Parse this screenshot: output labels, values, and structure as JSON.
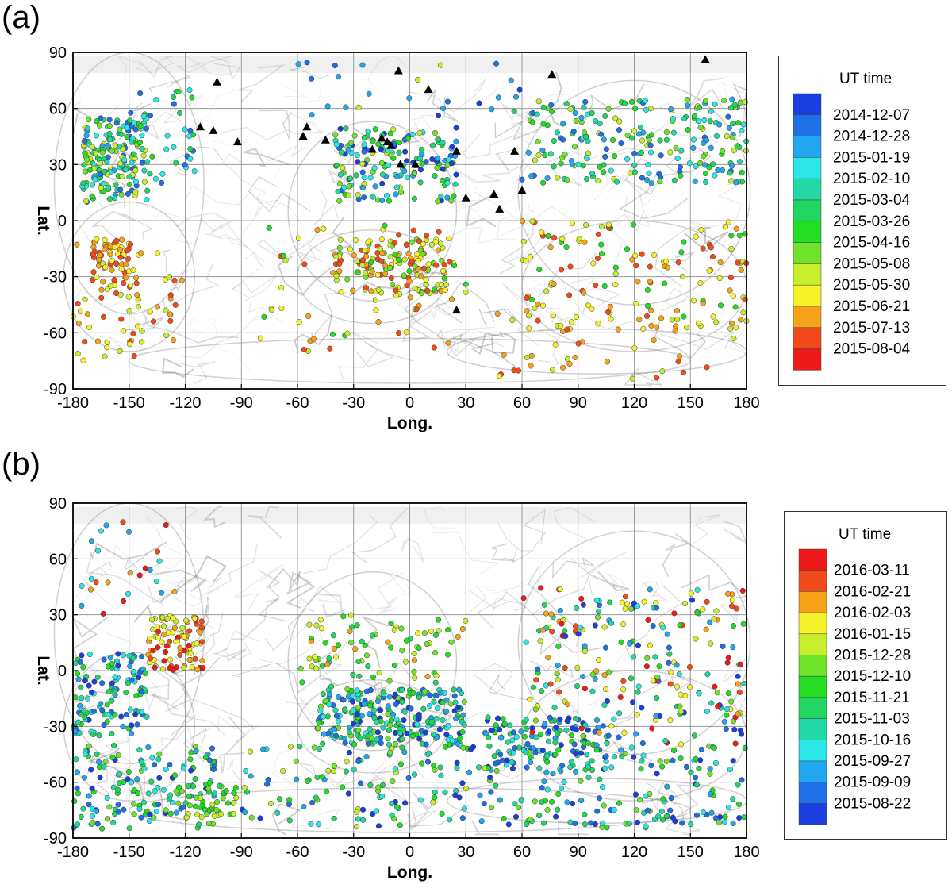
{
  "chart_data": [
    {
      "panel_label": "(a)",
      "type": "scatter",
      "xlabel": "Long.",
      "ylabel": "Lat.",
      "xlim": [
        -180,
        180
      ],
      "ylim": [
        -90,
        90
      ],
      "xticks": [
        "-180",
        "-150",
        "-120",
        "-90",
        "-60",
        "-30",
        "0",
        "30",
        "60",
        "90",
        "120",
        "150",
        "180"
      ],
      "yticks": [
        "90",
        "60",
        "30",
        "0",
        "-30",
        "-60",
        "-90"
      ],
      "grid": true,
      "legend": {
        "title": "UT time",
        "placement": "right",
        "entries": [
          {
            "label": "2014-12-07",
            "color": "#1a3ee0"
          },
          {
            "label": "2014-12-28",
            "color": "#1f6fe6"
          },
          {
            "label": "2015-01-19",
            "color": "#22a7ee"
          },
          {
            "label": "2015-02-10",
            "color": "#2ae6e6"
          },
          {
            "label": "2015-03-04",
            "color": "#22d9a6"
          },
          {
            "label": "2015-03-26",
            "color": "#22d460"
          },
          {
            "label": "2015-04-16",
            "color": "#22dd22"
          },
          {
            "label": "2015-05-08",
            "color": "#6fe22a"
          },
          {
            "label": "2015-05-30",
            "color": "#c6ee2a"
          },
          {
            "label": "2015-06-21",
            "color": "#f6f22a"
          },
          {
            "label": "2015-07-13",
            "color": "#f6a31a"
          },
          {
            "label": "2015-08-04",
            "color": "#f24a1a"
          },
          {
            "label": "",
            "color": "#ee1a1a"
          }
        ]
      },
      "marker_series": {
        "name": "",
        "marker": "triangle",
        "color": "#000000",
        "points": [
          [
            -103,
            74
          ],
          [
            -112,
            50
          ],
          [
            -105,
            48
          ],
          [
            -92,
            42
          ],
          [
            -55,
            50
          ],
          [
            -57,
            45
          ],
          [
            -45,
            43
          ],
          [
            -20,
            38
          ],
          [
            -15,
            44
          ],
          [
            -12,
            42
          ],
          [
            -10,
            40
          ],
          [
            -6,
            80
          ],
          [
            10,
            70
          ],
          [
            -5,
            30
          ],
          [
            3,
            30
          ],
          [
            25,
            37
          ],
          [
            30,
            12
          ],
          [
            45,
            14
          ],
          [
            48,
            6
          ],
          [
            56,
            37
          ],
          [
            60,
            16
          ],
          [
            76,
            78
          ],
          [
            158,
            86
          ],
          [
            25,
            -48
          ]
        ]
      },
      "color_clusters": [
        {
          "lon": [
            -175,
            -140
          ],
          "lat": [
            10,
            55
          ],
          "n": 180,
          "colors": [
            2,
            3,
            4,
            5,
            6,
            7,
            8,
            9
          ]
        },
        {
          "lon": [
            -170,
            -150
          ],
          "lat": [
            -35,
            -10
          ],
          "n": 60,
          "colors": [
            10,
            11,
            12
          ]
        },
        {
          "lon": [
            -180,
            -120
          ],
          "lat": [
            -75,
            -10
          ],
          "n": 70,
          "colors": [
            9,
            10,
            11,
            12
          ]
        },
        {
          "lon": [
            -150,
            -115
          ],
          "lat": [
            20,
            70
          ],
          "n": 40,
          "colors": [
            2,
            4,
            6,
            7
          ]
        },
        {
          "lon": [
            -40,
            25
          ],
          "lat": [
            10,
            50
          ],
          "n": 170,
          "colors": [
            1,
            2,
            3,
            4,
            5,
            6,
            7,
            8,
            9
          ]
        },
        {
          "lon": [
            -40,
            20
          ],
          "lat": [
            -40,
            -10
          ],
          "n": 140,
          "colors": [
            8,
            9,
            10,
            11,
            12
          ]
        },
        {
          "lon": [
            -80,
            30
          ],
          "lat": [
            -70,
            0
          ],
          "n": 70,
          "colors": [
            9,
            10,
            11,
            12,
            7
          ]
        },
        {
          "lon": [
            60,
            180
          ],
          "lat": [
            20,
            65
          ],
          "n": 220,
          "colors": [
            2,
            3,
            4,
            5,
            6,
            7,
            8,
            9
          ]
        },
        {
          "lon": [
            60,
            180
          ],
          "lat": [
            -60,
            0
          ],
          "n": 140,
          "colors": [
            9,
            10,
            11,
            12,
            7
          ]
        },
        {
          "lon": [
            40,
            180
          ],
          "lat": [
            -85,
            -45
          ],
          "n": 40,
          "colors": [
            10,
            11,
            12,
            9
          ]
        },
        {
          "lon": [
            -60,
            60
          ],
          "lat": [
            55,
            85
          ],
          "n": 25,
          "colors": [
            1,
            2,
            3,
            6,
            9
          ]
        }
      ]
    },
    {
      "panel_label": "(b)",
      "type": "scatter",
      "xlabel": "Long.",
      "ylabel": "Lat.",
      "xlim": [
        -180,
        180
      ],
      "ylim": [
        -90,
        90
      ],
      "xticks": [
        "-180",
        "-150",
        "-120",
        "-90",
        "-60",
        "-30",
        "0",
        "30",
        "60",
        "90",
        "120",
        "150",
        "180"
      ],
      "yticks": [
        "90",
        "60",
        "30",
        "0",
        "-30",
        "-60",
        "-90"
      ],
      "grid": true,
      "legend": {
        "title": "UT time",
        "placement": "right",
        "entries": [
          {
            "label": "2016-03-11",
            "color": "#ee1a1a"
          },
          {
            "label": "2016-02-21",
            "color": "#f24a1a"
          },
          {
            "label": "2016-02-03",
            "color": "#f6a31a"
          },
          {
            "label": "2016-01-15",
            "color": "#f6f22a"
          },
          {
            "label": "2015-12-28",
            "color": "#c6ee2a"
          },
          {
            "label": "2015-12-10",
            "color": "#6fe22a"
          },
          {
            "label": "2015-11-21",
            "color": "#22dd22"
          },
          {
            "label": "2015-11-03",
            "color": "#22d460"
          },
          {
            "label": "2015-10-16",
            "color": "#22d9a6"
          },
          {
            "label": "2015-09-27",
            "color": "#2ae6e6"
          },
          {
            "label": "2015-09-09",
            "color": "#22a7ee"
          },
          {
            "label": "2015-08-22",
            "color": "#1f6fe6"
          },
          {
            "label": "",
            "color": "#1a3ee0"
          }
        ]
      },
      "color_clusters": [
        {
          "lon": [
            -140,
            -110
          ],
          "lat": [
            0,
            30
          ],
          "n": 90,
          "colors": [
            1,
            2,
            3,
            4,
            5
          ]
        },
        {
          "lon": [
            -180,
            -140
          ],
          "lat": [
            -35,
            10
          ],
          "n": 120,
          "colors": [
            7,
            8,
            9,
            10,
            11,
            12,
            13
          ]
        },
        {
          "lon": [
            -180,
            -100
          ],
          "lat": [
            -85,
            -40
          ],
          "n": 150,
          "colors": [
            6,
            7,
            8,
            9,
            10,
            11,
            12,
            13
          ]
        },
        {
          "lon": [
            -50,
            30
          ],
          "lat": [
            -40,
            -10
          ],
          "n": 260,
          "colors": [
            6,
            7,
            8,
            9,
            10,
            11,
            12,
            13
          ]
        },
        {
          "lon": [
            -60,
            30
          ],
          "lat": [
            -10,
            30
          ],
          "n": 80,
          "colors": [
            3,
            4,
            5,
            6,
            7,
            8
          ]
        },
        {
          "lon": [
            -90,
            60
          ],
          "lat": [
            -85,
            -40
          ],
          "n": 140,
          "colors": [
            5,
            6,
            7,
            8,
            9,
            10,
            11,
            12,
            13
          ]
        },
        {
          "lon": [
            40,
            110
          ],
          "lat": [
            -55,
            -25
          ],
          "n": 130,
          "colors": [
            7,
            8,
            9,
            10,
            11,
            12,
            13
          ]
        },
        {
          "lon": [
            60,
            180
          ],
          "lat": [
            -85,
            -40
          ],
          "n": 140,
          "colors": [
            6,
            7,
            8,
            9,
            10,
            11,
            12,
            13
          ]
        },
        {
          "lon": [
            60,
            180
          ],
          "lat": [
            -40,
            45
          ],
          "n": 230,
          "colors": [
            1,
            2,
            3,
            4,
            5,
            6,
            7,
            8,
            9,
            10,
            11,
            12,
            13
          ]
        },
        {
          "lon": [
            -120,
            -90
          ],
          "lat": [
            -80,
            -60
          ],
          "n": 40,
          "colors": [
            5,
            6,
            7,
            8
          ]
        },
        {
          "lon": [
            -180,
            -120
          ],
          "lat": [
            30,
            80
          ],
          "n": 25,
          "colors": [
            1,
            2,
            3,
            10,
            11
          ]
        }
      ]
    }
  ]
}
